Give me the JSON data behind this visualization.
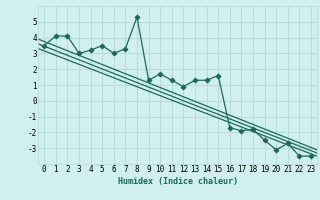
{
  "xlabel": "Humidex (Indice chaleur)",
  "bg_color": "#cff0ee",
  "grid_color": "#b8d8d4",
  "line_color": "#1a6b5a",
  "xlim": [
    -0.5,
    23.5
  ],
  "ylim": [
    -4.0,
    6.0
  ],
  "yticks": [
    -3,
    -2,
    -1,
    0,
    1,
    2,
    3,
    4,
    5
  ],
  "xticks": [
    0,
    1,
    2,
    3,
    4,
    5,
    6,
    7,
    8,
    9,
    10,
    11,
    12,
    13,
    14,
    15,
    16,
    17,
    18,
    19,
    20,
    21,
    22,
    23
  ],
  "scatter_x": [
    0,
    1,
    2,
    3,
    4,
    5,
    6,
    7,
    8,
    9,
    10,
    11,
    12,
    13,
    14,
    15,
    16,
    17,
    18,
    19,
    20,
    21,
    22,
    23
  ],
  "scatter_y": [
    3.5,
    4.1,
    4.1,
    3.0,
    3.2,
    3.5,
    3.0,
    3.3,
    5.3,
    1.3,
    1.7,
    1.3,
    0.9,
    1.3,
    1.3,
    1.6,
    -1.7,
    -1.9,
    -1.8,
    -2.5,
    -3.1,
    -2.7,
    -3.5,
    -3.5
  ],
  "reg_lines": [
    [
      3.6,
      -3.3
    ],
    [
      3.3,
      -3.5
    ],
    [
      3.9,
      -3.1
    ]
  ],
  "tick_fontsize": 5.5,
  "xlabel_fontsize": 6.0
}
